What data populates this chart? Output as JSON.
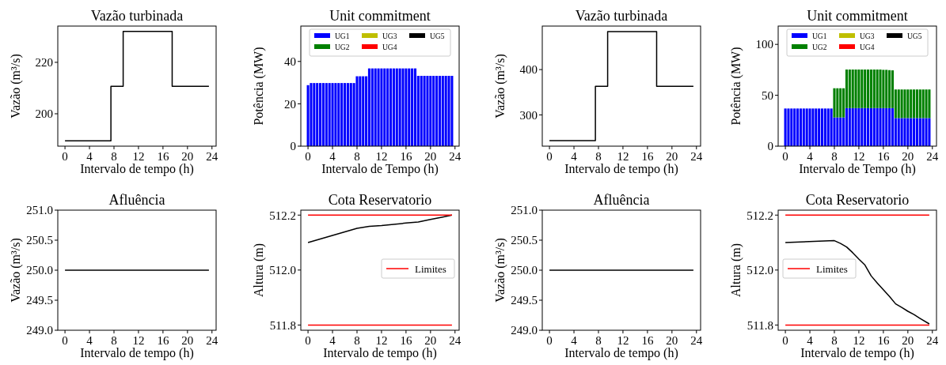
{
  "chart_data": [
    {
      "type": "step",
      "title": "Vazão turbinada",
      "xlabel": "Intervalo de tempo (h)",
      "ylabel": "Vazão (m³/s)",
      "xlim": [
        -1.175,
        24.675
      ],
      "xticks": [
        0,
        4,
        8,
        12,
        16,
        20,
        24
      ],
      "ylim": [
        187.4,
        234.1
      ],
      "yticks": [
        200,
        220
      ],
      "series": [
        {
          "color": "#000000",
          "x": [
            0,
            7.5,
            9.5,
            17.5,
            23.5
          ],
          "values": [
            189.5,
            210.7,
            232,
            210.7,
            210.7
          ]
        }
      ]
    },
    {
      "type": "bar",
      "stacked": true,
      "title": "Unit commitment",
      "xlabel": "Intervalo de Tempo (h)",
      "ylabel": "Potência (MW)",
      "xlim": [
        -1.175,
        24.675
      ],
      "xticks": [
        0,
        4,
        8,
        12,
        16,
        20,
        24
      ],
      "ylim": [
        0,
        56.7
      ],
      "yticks": [
        0,
        20,
        40
      ],
      "legend": "top",
      "x": [
        0,
        0.5,
        1,
        1.5,
        2,
        2.5,
        3,
        3.5,
        4,
        4.5,
        5,
        5.5,
        6,
        6.5,
        7,
        7.5,
        8,
        8.5,
        9,
        9.5,
        10,
        10.5,
        11,
        11.5,
        12,
        12.5,
        13,
        13.5,
        14,
        14.5,
        15,
        15.5,
        16,
        16.5,
        17,
        17.5,
        18,
        18.5,
        19,
        19.5,
        20,
        20.5,
        21,
        21.5,
        22,
        22.5,
        23,
        23.5
      ],
      "series": [
        {
          "name": "UG1",
          "color": "#0000ff",
          "values": [
            28.8,
            29.8,
            29.8,
            29.8,
            29.8,
            29.8,
            29.8,
            29.8,
            29.8,
            29.8,
            29.8,
            29.8,
            29.8,
            29.8,
            29.8,
            29.8,
            33,
            33,
            33,
            33,
            36.7,
            36.7,
            36.7,
            36.7,
            36.7,
            36.7,
            36.7,
            36.7,
            36.7,
            36.7,
            36.7,
            36.7,
            36.7,
            36.7,
            36.7,
            36.7,
            33.2,
            33.2,
            33.2,
            33.2,
            33.2,
            33.2,
            33.2,
            33.2,
            33.2,
            33.2,
            33.2,
            33.2
          ]
        },
        {
          "name": "UG2",
          "color": "#008000",
          "values": [
            0,
            0,
            0,
            0,
            0,
            0,
            0,
            0,
            0,
            0,
            0,
            0,
            0,
            0,
            0,
            0,
            0,
            0,
            0,
            0,
            0,
            0,
            0,
            0,
            0,
            0,
            0,
            0,
            0,
            0,
            0,
            0,
            0,
            0,
            0,
            0,
            0,
            0,
            0,
            0,
            0,
            0,
            0,
            0,
            0,
            0,
            0,
            0
          ]
        },
        {
          "name": "UG3",
          "color": "#bfbf00",
          "values": [
            0,
            0,
            0,
            0,
            0,
            0,
            0,
            0,
            0,
            0,
            0,
            0,
            0,
            0,
            0,
            0,
            0,
            0,
            0,
            0,
            0,
            0,
            0,
            0,
            0,
            0,
            0,
            0,
            0,
            0,
            0,
            0,
            0,
            0,
            0,
            0,
            0,
            0,
            0,
            0,
            0,
            0,
            0,
            0,
            0,
            0,
            0,
            0
          ]
        },
        {
          "name": "UG4",
          "color": "#ff0000",
          "values": [
            0,
            0,
            0,
            0,
            0,
            0,
            0,
            0,
            0,
            0,
            0,
            0,
            0,
            0,
            0,
            0,
            0,
            0,
            0,
            0,
            0,
            0,
            0,
            0,
            0,
            0,
            0,
            0,
            0,
            0,
            0,
            0,
            0,
            0,
            0,
            0,
            0,
            0,
            0,
            0,
            0,
            0,
            0,
            0,
            0,
            0,
            0,
            0
          ]
        },
        {
          "name": "UG5",
          "color": "#000000",
          "values": [
            0,
            0,
            0,
            0,
            0,
            0,
            0,
            0,
            0,
            0,
            0,
            0,
            0,
            0,
            0,
            0,
            0,
            0,
            0,
            0,
            0,
            0,
            0,
            0,
            0,
            0,
            0,
            0,
            0,
            0,
            0,
            0,
            0,
            0,
            0,
            0,
            0,
            0,
            0,
            0,
            0,
            0,
            0,
            0,
            0,
            0,
            0,
            0
          ]
        }
      ]
    },
    {
      "type": "step",
      "title": "Vazão turbinada",
      "xlabel": "Intervalo de tempo (h)",
      "ylabel": "Vazão (m³/s)",
      "xlim": [
        -1.175,
        24.675
      ],
      "xticks": [
        0,
        4,
        8,
        12,
        16,
        20,
        24
      ],
      "ylim": [
        231,
        496
      ],
      "yticks": [
        300,
        400
      ],
      "series": [
        {
          "color": "#000000",
          "x": [
            0,
            7.5,
            9.5,
            17.5,
            23.5
          ],
          "values": [
            243,
            363,
            484,
            363,
            363
          ]
        }
      ]
    },
    {
      "type": "bar",
      "stacked": true,
      "title": "Unit commitment",
      "xlabel": "Intervalo de Tempo (h)",
      "ylabel": "Potência (MW)",
      "xlim": [
        -1.175,
        24.675
      ],
      "xticks": [
        0,
        4,
        8,
        12,
        16,
        20,
        24
      ],
      "ylim": [
        0,
        118
      ],
      "yticks": [
        0,
        50,
        100
      ],
      "legend": "top",
      "x": [
        0,
        0.5,
        1,
        1.5,
        2,
        2.5,
        3,
        3.5,
        4,
        4.5,
        5,
        5.5,
        6,
        6.5,
        7,
        7.5,
        8,
        8.5,
        9,
        9.5,
        10,
        10.5,
        11,
        11.5,
        12,
        12.5,
        13,
        13.5,
        14,
        14.5,
        15,
        15.5,
        16,
        16.5,
        17,
        17.5,
        18,
        18.5,
        19,
        19.5,
        20,
        20.5,
        21,
        21.5,
        22,
        22.5,
        23,
        23.5
      ],
      "series": [
        {
          "name": "UG1",
          "color": "#0000ff",
          "values": [
            37,
            37,
            37,
            37,
            37,
            37,
            37,
            37,
            37,
            37,
            37,
            37,
            37,
            37,
            37,
            37,
            28.2,
            28.2,
            28.2,
            28.2,
            37.4,
            37.4,
            37.4,
            37.4,
            37.4,
            37.4,
            37.4,
            37.4,
            37.4,
            37.4,
            37.4,
            37.4,
            37.4,
            37.4,
            37.4,
            37.4,
            27.6,
            27.6,
            27.6,
            27.6,
            27.6,
            27.6,
            27.6,
            27.6,
            27.6,
            27.6,
            27.6,
            27.6
          ]
        },
        {
          "name": "UG2",
          "color": "#008000",
          "values": [
            0,
            0,
            0,
            0,
            0,
            0,
            0,
            0,
            0,
            0,
            0,
            0,
            0,
            0,
            0,
            0,
            28.7,
            28.7,
            28.7,
            28.7,
            37.9,
            37.9,
            37.9,
            37.9,
            37.9,
            37.9,
            37.9,
            37.9,
            37.9,
            37.9,
            37.9,
            37.9,
            37.6,
            37.6,
            37.3,
            37.1,
            28.1,
            28.1,
            28.1,
            28.1,
            28.1,
            28.1,
            28.1,
            28.1,
            28.1,
            28.1,
            28.1,
            28.1
          ]
        },
        {
          "name": "UG3",
          "color": "#bfbf00",
          "values": [
            0,
            0,
            0,
            0,
            0,
            0,
            0,
            0,
            0,
            0,
            0,
            0,
            0,
            0,
            0,
            0,
            0,
            0,
            0,
            0,
            0,
            0,
            0,
            0,
            0,
            0,
            0,
            0,
            0,
            0,
            0,
            0,
            0,
            0,
            0,
            0,
            0,
            0,
            0,
            0,
            0,
            0,
            0,
            0,
            0,
            0,
            0,
            0
          ]
        },
        {
          "name": "UG4",
          "color": "#ff0000",
          "values": [
            0,
            0,
            0,
            0,
            0,
            0,
            0,
            0,
            0,
            0,
            0,
            0,
            0,
            0,
            0,
            0,
            0,
            0,
            0,
            0,
            0,
            0,
            0,
            0,
            0,
            0,
            0,
            0,
            0,
            0,
            0,
            0,
            0,
            0,
            0,
            0,
            0,
            0,
            0,
            0,
            0,
            0,
            0,
            0,
            0,
            0,
            0,
            0
          ]
        },
        {
          "name": "UG5",
          "color": "#000000",
          "values": [
            0,
            0,
            0,
            0,
            0,
            0,
            0,
            0,
            0,
            0,
            0,
            0,
            0,
            0,
            0,
            0,
            0,
            0,
            0,
            0,
            0,
            0,
            0,
            0,
            0,
            0,
            0,
            0,
            0,
            0,
            0,
            0,
            0,
            0,
            0,
            0,
            0,
            0,
            0,
            0,
            0,
            0,
            0,
            0,
            0,
            0,
            0,
            0
          ]
        }
      ]
    },
    {
      "type": "line",
      "title": "Afluência",
      "xlabel": "Intervalo de tempo (h)",
      "ylabel": "Vazão (m³/s)",
      "xlim": [
        -1.175,
        24.675
      ],
      "xticks": [
        0,
        4,
        8,
        12,
        16,
        20,
        24
      ],
      "ylim": [
        249,
        251
      ],
      "yticks": [
        {
          "value": 249,
          "label": "249.0"
        },
        249.5,
        {
          "value": 250,
          "label": "250.0"
        },
        250.5,
        {
          "value": 251,
          "label": "251.0"
        }
      ],
      "series": [
        {
          "color": "#000000",
          "x": [
            0,
            23.5
          ],
          "values": [
            250,
            250
          ]
        }
      ]
    },
    {
      "type": "line",
      "title": "Cota Reservatorio",
      "xlabel": "Intervalo de tempo (h)",
      "ylabel": "Altura (m)",
      "xlim": [
        -1.175,
        24.675
      ],
      "xticks": [
        0,
        4,
        8,
        12,
        16,
        20,
        24
      ],
      "ylim": [
        511.781,
        512.218
      ],
      "yticks": [
        511.8,
        {
          "value": 512,
          "label": "512.0"
        },
        512.2
      ],
      "legend": "right",
      "ref_lines": [
        {
          "axis": "y",
          "value": 512.2,
          "label": "Limites",
          "color": "#ff0000"
        },
        {
          "axis": "y",
          "value": 511.8,
          "color": "#ff0000"
        }
      ],
      "series": [
        {
          "color": "#000000",
          "x": [
            0,
            4,
            8,
            10,
            12,
            16,
            18,
            20,
            22,
            23.5
          ],
          "values": [
            512.1,
            512.126,
            512.152,
            512.159,
            512.162,
            512.171,
            512.175,
            512.184,
            512.193,
            512.2
          ]
        }
      ]
    },
    {
      "type": "line",
      "title": "Afluência",
      "xlabel": "Intervalo de tempo (h)",
      "ylabel": "Vazão (m³/s)",
      "xlim": [
        -1.175,
        24.675
      ],
      "xticks": [
        0,
        4,
        8,
        12,
        16,
        20,
        24
      ],
      "ylim": [
        249,
        251
      ],
      "yticks": [
        {
          "value": 249,
          "label": "249.0"
        },
        249.5,
        {
          "value": 250,
          "label": "250.0"
        },
        250.5,
        {
          "value": 251,
          "label": "251.0"
        }
      ],
      "series": [
        {
          "color": "#000000",
          "x": [
            0,
            23.5
          ],
          "values": [
            250,
            250
          ]
        }
      ]
    },
    {
      "type": "line",
      "title": "Cota Reservatorio",
      "xlabel": "Intervalo de tempo (h)",
      "ylabel": "Altura (m)",
      "xlim": [
        -1.175,
        24.675
      ],
      "xticks": [
        0,
        4,
        8,
        12,
        16,
        20,
        24
      ],
      "ylim": [
        511.781,
        512.218
      ],
      "yticks": [
        511.8,
        {
          "value": 512,
          "label": "512.0"
        },
        512.2
      ],
      "legend": "left",
      "ref_lines": [
        {
          "axis": "y",
          "value": 512.2,
          "label": "Limites",
          "color": "#ff0000"
        },
        {
          "axis": "y",
          "value": 511.8,
          "color": "#ff0000"
        }
      ],
      "series": [
        {
          "color": "#000000",
          "x": [
            0,
            8,
            9,
            10,
            11,
            12,
            13,
            14,
            15,
            16,
            17,
            18,
            19,
            20,
            21,
            22,
            23.5
          ],
          "values": [
            512.1,
            512.107,
            512.097,
            512.084,
            512.063,
            512.04,
            512.018,
            511.979,
            511.953,
            511.928,
            511.904,
            511.877,
            511.864,
            511.85,
            511.838,
            511.824,
            511.804
          ]
        }
      ]
    }
  ]
}
